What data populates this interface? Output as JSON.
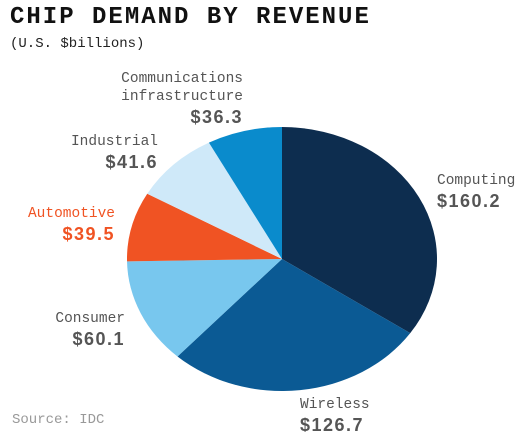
{
  "chart_data": {
    "type": "pie",
    "title": "CHIP DEMAND BY REVENUE",
    "subtitle": "(U.S. $billions)",
    "source": "Source: IDC",
    "categories": [
      "Computing",
      "Wireless",
      "Consumer",
      "Automotive",
      "Industrial",
      "Communications infrastructure"
    ],
    "values": [
      160.2,
      126.7,
      60.1,
      39.5,
      41.6,
      36.3
    ],
    "value_labels": [
      "$160.2",
      "$126.7",
      "$60.1",
      "$39.5",
      "$41.6",
      "$36.3"
    ],
    "colors": [
      "#0d2d4f",
      "#0b5a94",
      "#78c7ee",
      "#f05323",
      "#cfe9f9",
      "#0a8bcc"
    ]
  }
}
